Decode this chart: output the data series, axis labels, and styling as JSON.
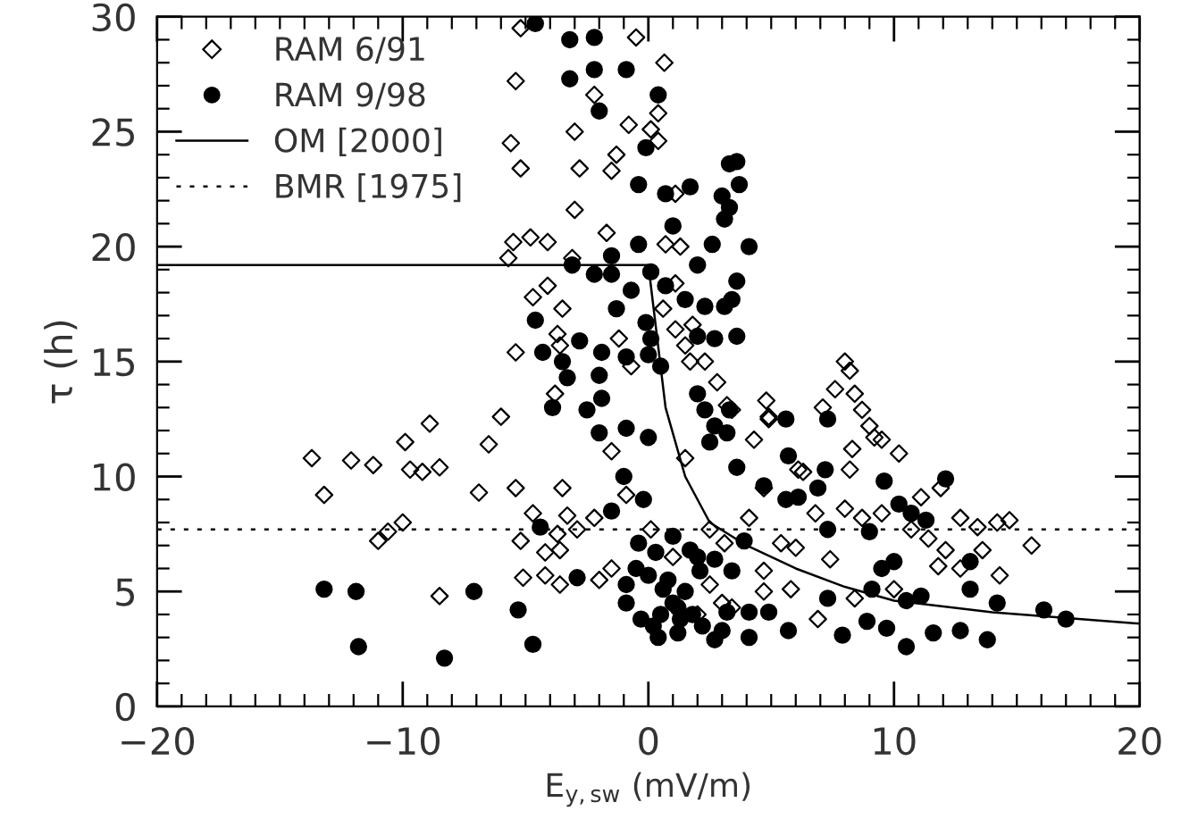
{
  "chart_data": {
    "type": "scatter",
    "xlabel": "E$_{y,sw}$ (mV/m)",
    "ylabel": "τ (h)",
    "xlim": [
      -20,
      20
    ],
    "ylim": [
      0,
      30
    ],
    "xticks": [
      -20,
      {
        "value": -19,
        "label": null
      },
      {
        "value": -18,
        "label": null
      },
      {
        "value": -17,
        "label": null
      },
      {
        "value": -16,
        "label": null
      },
      {
        "value": -15,
        "label": null
      },
      {
        "value": -14,
        "label": null
      },
      {
        "value": -13,
        "label": null
      },
      {
        "value": -12,
        "label": null
      },
      {
        "value": -11,
        "label": null
      },
      -10,
      {
        "value": -9,
        "label": null
      },
      {
        "value": -8,
        "label": null
      },
      {
        "value": -7,
        "label": null
      },
      {
        "value": -6,
        "label": null
      },
      {
        "value": -5,
        "label": null
      },
      {
        "value": -4,
        "label": null
      },
      {
        "value": -3,
        "label": null
      },
      {
        "value": -2,
        "label": null
      },
      {
        "value": -1,
        "label": null
      },
      0,
      {
        "value": 1,
        "label": null
      },
      {
        "value": 2,
        "label": null
      },
      {
        "value": 3,
        "label": null
      },
      {
        "value": 4,
        "label": null
      },
      {
        "value": 5,
        "label": null
      },
      {
        "value": 6,
        "label": null
      },
      {
        "value": 7,
        "label": null
      },
      {
        "value": 8,
        "label": null
      },
      {
        "value": 9,
        "label": null
      },
      10,
      {
        "value": 11,
        "label": null
      },
      {
        "value": 12,
        "label": null
      },
      {
        "value": 13,
        "label": null
      },
      {
        "value": 14,
        "label": null
      },
      {
        "value": 15,
        "label": null
      },
      {
        "value": 16,
        "label": null
      },
      {
        "value": 17,
        "label": null
      },
      {
        "value": 18,
        "label": null
      },
      {
        "value": 19,
        "label": null
      },
      20
    ],
    "yticks": [
      0,
      {
        "value": 1,
        "label": null
      },
      {
        "value": 2,
        "label": null
      },
      {
        "value": 3,
        "label": null
      },
      {
        "value": 4,
        "label": null
      },
      5,
      {
        "value": 6,
        "label": null
      },
      {
        "value": 7,
        "label": null
      },
      {
        "value": 8,
        "label": null
      },
      {
        "value": 9,
        "label": null
      },
      10,
      {
        "value": 11,
        "label": null
      },
      {
        "value": 12,
        "label": null
      },
      {
        "value": 13,
        "label": null
      },
      {
        "value": 14,
        "label": null
      },
      15,
      {
        "value": 16,
        "label": null
      },
      {
        "value": 17,
        "label": null
      },
      {
        "value": 18,
        "label": null
      },
      {
        "value": 19,
        "label": null
      },
      20,
      {
        "value": 21,
        "label": null
      },
      {
        "value": 22,
        "label": null
      },
      {
        "value": 23,
        "label": null
      },
      {
        "value": 24,
        "label": null
      },
      25,
      {
        "value": 26,
        "label": null
      },
      {
        "value": 27,
        "label": null
      },
      {
        "value": 28,
        "label": null
      },
      {
        "value": 29,
        "label": null
      },
      30
    ],
    "grid": false,
    "legend": "top left",
    "series": [
      {
        "name": "RAM 6/91",
        "marker": "diamond",
        "color": "#000000",
        "x": [
          -13.7,
          -13.2,
          -12.1,
          -11.2,
          -11.0,
          -10.6,
          -10.0,
          -9.9,
          -8.9,
          -9.7,
          -9.2,
          -8.5,
          -8.5,
          -6.9,
          -6.5,
          -6.0,
          -5.4,
          -5.2,
          -5.1,
          -4.2,
          -4.7,
          -4.2,
          -3.7,
          -3.5,
          -3.6,
          -3.6,
          -3.3,
          -2.9,
          -5.4,
          -5.6,
          -5.2,
          -5.2,
          -5.5,
          -5.7,
          -4.8,
          -4.1,
          -4.7,
          -5.4,
          -4.1,
          -3.7,
          -3.0,
          -3.0,
          -2.8,
          -3.1,
          -3.5,
          -3.6,
          -3.8,
          -0.5,
          0.65,
          -2.2,
          0.4,
          -0.8,
          0.1,
          0.4,
          -1.3,
          -1.5,
          1.1,
          0.7,
          1.3,
          1.1,
          0.6,
          1.1,
          1.5,
          1.8,
          1.7,
          2.3,
          2.8,
          -1.2,
          -0.7,
          -1.7,
          8.0,
          8.2,
          7.6,
          8.4,
          7.1,
          8.7,
          9.0,
          9.2,
          4.8,
          4.9,
          4.3,
          3.2,
          3.4,
          10.2,
          9.5,
          8.3,
          6.3,
          11.9,
          11.1,
          8.2,
          8.0,
          8.7,
          9.5,
          10.7,
          11.4,
          12.1,
          12.7,
          13.4,
          13.6,
          14.2,
          14.7,
          15.6,
          14.3,
          12.7,
          11.8,
          6.8,
          7.4,
          6.0,
          5.4,
          4.7,
          4.7,
          5.8,
          8.4,
          6.9,
          10.0,
          3.4,
          4.7,
          4.1,
          6.1,
          4.9,
          -1.5,
          -0.9,
          -2.2,
          0.1,
          2.5,
          3.1,
          2.5,
          1.5,
          -2.0,
          -1.5,
          1.0,
          2.0,
          3.0
        ],
        "values": [
          10.8,
          9.2,
          10.7,
          10.5,
          7.2,
          7.6,
          8.0,
          11.5,
          12.3,
          10.3,
          10.2,
          10.4,
          4.8,
          9.3,
          11.4,
          12.6,
          9.5,
          7.2,
          5.6,
          5.7,
          8.4,
          6.7,
          7.5,
          9.5,
          6.8,
          5.3,
          8.3,
          7.7,
          27.2,
          24.5,
          23.4,
          29.5,
          20.2,
          19.5,
          20.4,
          20.2,
          17.8,
          15.4,
          18.3,
          16.2,
          25.0,
          21.6,
          23.4,
          19.5,
          17.3,
          15.7,
          13.6,
          29.1,
          28.0,
          26.6,
          25.8,
          25.3,
          25.1,
          24.6,
          24.0,
          23.3,
          22.3,
          20.1,
          20.0,
          18.4,
          17.3,
          16.4,
          15.7,
          16.6,
          15.0,
          15.0,
          14.1,
          16.0,
          14.8,
          20.6,
          15.0,
          14.6,
          13.8,
          13.6,
          13.0,
          12.9,
          12.2,
          11.7,
          13.3,
          12.5,
          11.6,
          13.1,
          12.9,
          11.0,
          11.6,
          11.2,
          10.2,
          9.5,
          9.1,
          10.3,
          8.6,
          8.2,
          8.4,
          7.7,
          7.3,
          6.8,
          8.2,
          7.8,
          6.8,
          8.0,
          8.1,
          7.0,
          5.7,
          6.0,
          6.1,
          8.4,
          6.4,
          6.9,
          7.1,
          5.9,
          5.0,
          5.1,
          4.7,
          3.8,
          5.1,
          4.3,
          9.5,
          8.2,
          10.3,
          12.6,
          11.1,
          9.2,
          8.2,
          7.7,
          7.7,
          7.1,
          5.3,
          10.8,
          5.5,
          6.0,
          6.5,
          4.0,
          4.5
        ]
      },
      {
        "name": "RAM 9/98",
        "marker": "circle",
        "color": "#000000",
        "x": [
          -13.2,
          -11.9,
          -11.8,
          -8.3,
          -7.1,
          -5.3,
          -4.7,
          -4.4,
          -2.9,
          -4.6,
          -3.2,
          -3.2,
          -3.1,
          -4.6,
          -4.3,
          -3.5,
          -3.3,
          -3.9,
          -2.8,
          -2.5,
          -2.2,
          -2.2,
          -0.9,
          0.4,
          -2.0,
          -0.1,
          1.7,
          0.7,
          -0.4,
          3.3,
          3.6,
          3.7,
          3.0,
          3.3,
          3.1,
          2.6,
          4.1,
          2.0,
          1.0,
          -0.4,
          -1.5,
          -1.5,
          -2.2,
          0.1,
          -0.7,
          -1.3,
          3.6,
          3.4,
          3.1,
          3.6,
          2.3,
          2.0,
          2.7,
          1.5,
          0.7,
          -0.1,
          0.1,
          0.0,
          0.5,
          -1.9,
          -2.0,
          -0.9,
          2.0,
          2.3,
          2.7,
          3.3,
          -1.9,
          -2.0,
          -0.9,
          0.0,
          0.4,
          1.2,
          2.7,
          4.1,
          5.7,
          7.9,
          8.9,
          9.7,
          10.5,
          11.6,
          12.7,
          13.8,
          14.2,
          13.1,
          16.1,
          17.0,
          11.1,
          10.5,
          9.1,
          7.3,
          4.9,
          4.1,
          3.2,
          -0.9,
          -0.9,
          0.0,
          0.6,
          1.2,
          0.3,
          -0.4,
          1.0,
          1.7,
          2.1,
          2.7,
          3.9,
          3.4,
          4.7,
          5.6,
          6.1,
          7.2,
          5.7,
          6.9,
          7.3,
          9.0,
          9.5,
          10.0,
          9.6,
          10.2,
          10.7,
          11.3,
          12.1,
          13.1,
          3.6,
          2.5,
          3.2,
          7.3,
          5.6,
          0.5,
          1.0,
          0.8,
          1.5,
          1.8,
          0.2,
          1.3,
          2.2,
          -0.5,
          -0.3,
          3.0,
          2.0,
          -1.0,
          -0.2,
          -1.5
        ],
        "values": [
          5.1,
          5.0,
          2.6,
          2.1,
          5.0,
          4.2,
          2.7,
          7.8,
          5.6,
          29.7,
          29.0,
          27.3,
          19.2,
          16.8,
          15.4,
          15.0,
          14.3,
          13.0,
          15.9,
          12.9,
          29.1,
          27.7,
          27.7,
          26.6,
          25.9,
          24.3,
          22.6,
          22.3,
          22.7,
          23.6,
          23.7,
          22.7,
          22.2,
          21.7,
          21.2,
          20.1,
          20.0,
          19.2,
          20.9,
          20.1,
          19.6,
          18.8,
          18.8,
          18.9,
          18.1,
          17.3,
          18.5,
          17.7,
          17.4,
          16.1,
          17.4,
          16.1,
          16.0,
          17.7,
          18.3,
          16.7,
          16.0,
          15.3,
          14.8,
          15.4,
          14.4,
          15.2,
          13.6,
          12.9,
          12.2,
          12.9,
          13.4,
          11.9,
          12.1,
          11.7,
          3.0,
          3.2,
          2.9,
          3.0,
          3.3,
          3.1,
          3.7,
          3.4,
          2.6,
          3.2,
          3.3,
          2.9,
          4.5,
          5.1,
          4.2,
          3.8,
          4.8,
          4.6,
          5.1,
          4.7,
          4.1,
          4.1,
          4.1,
          4.5,
          5.3,
          5.7,
          5.1,
          4.3,
          6.7,
          7.1,
          7.4,
          6.8,
          5.9,
          6.4,
          7.2,
          5.9,
          9.6,
          9.0,
          9.1,
          10.3,
          10.9,
          9.5,
          7.7,
          7.6,
          6.0,
          6.3,
          9.8,
          8.8,
          8.4,
          8.1,
          9.9,
          6.3,
          10.4,
          11.5,
          11.9,
          12.5,
          12.5,
          4.0,
          4.5,
          5.5,
          5.0,
          4.0,
          3.5,
          3.8,
          3.5,
          6.0,
          3.8,
          3.3,
          6.5,
          10.0,
          9.0,
          8.5
        ]
      },
      {
        "name": "OM [2000]",
        "type": "line",
        "line_style": "solid",
        "color": "#000000",
        "x": [
          -20,
          0,
          0.7,
          1.5,
          2.5,
          4,
          6,
          8,
          10,
          14,
          20
        ],
        "values": [
          19.2,
          19.2,
          13.0,
          10.0,
          8.0,
          7.0,
          6.0,
          5.2,
          4.6,
          4.1,
          3.6
        ]
      },
      {
        "name": "BMR [1975]",
        "type": "line",
        "line_style": "dotted",
        "color": "#000000",
        "x": [
          -20,
          20
        ],
        "values": [
          7.7,
          7.7
        ]
      }
    ]
  }
}
